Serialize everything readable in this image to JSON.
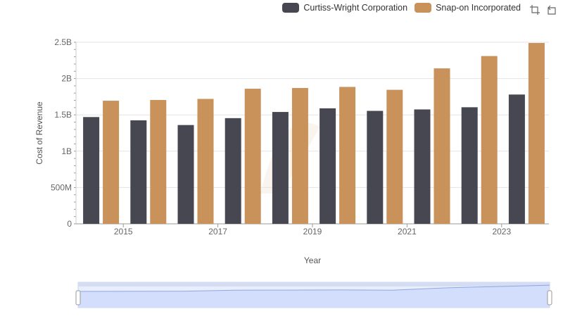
{
  "legend": [
    {
      "name": "Curtiss-Wright Corporation",
      "color": "#474752"
    },
    {
      "name": "Snap-on Incorporated",
      "color": "#c8925a"
    }
  ],
  "toolbar": {
    "icons": [
      "crosshair-zoom-icon",
      "reset-zoom-icon"
    ]
  },
  "chart_data": {
    "type": "bar",
    "xlabel": "Year",
    "ylabel": "Cost of Revenue",
    "ylim": [
      0,
      2500000000
    ],
    "yticks": [
      {
        "value": 0,
        "label": "0"
      },
      {
        "value": 500000000,
        "label": "500M"
      },
      {
        "value": 1000000000,
        "label": "1B"
      },
      {
        "value": 1500000000,
        "label": "1.5B"
      },
      {
        "value": 2000000000,
        "label": "2B"
      },
      {
        "value": 2500000000,
        "label": "2.5B"
      }
    ],
    "categories": [
      "2014",
      "2015",
      "2016",
      "2017",
      "2018",
      "2019",
      "2020",
      "2021",
      "2022",
      "2023"
    ],
    "xtick_labels": [
      "2015",
      "2017",
      "2019",
      "2021",
      "2023"
    ],
    "grid": true,
    "legend_position": "top-right",
    "series": [
      {
        "name": "Curtiss-Wright Corporation",
        "color": "#474752",
        "values": [
          1470000000,
          1425000000,
          1360000000,
          1455000000,
          1540000000,
          1590000000,
          1555000000,
          1575000000,
          1605000000,
          1780000000
        ]
      },
      {
        "name": "Snap-on Incorporated",
        "color": "#c8925a",
        "values": [
          1695000000,
          1705000000,
          1720000000,
          1860000000,
          1870000000,
          1885000000,
          1845000000,
          2140000000,
          2310000000,
          2490000000
        ]
      }
    ]
  }
}
